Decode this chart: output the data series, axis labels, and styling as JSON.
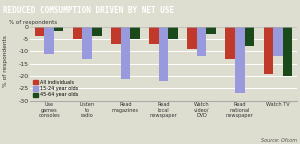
{
  "title": "REDUCED COMSUMPTION DRIVEN BY NET USE",
  "ylabel": "% of respondents",
  "source": "Source: Ofcom",
  "categories": [
    "Use\ngames\nconsoles",
    "Listen\nto\nradio",
    "Read\nmagazines",
    "Read\nlocal\nnewspaper",
    "Watch\nvideo/\nDVD",
    "Read\nnational\nnewspaper",
    "Watch TV"
  ],
  "series": {
    "All individuals": [
      -4,
      -5,
      -7,
      -7,
      -9,
      -13,
      -19
    ],
    "15-24 year olds": [
      -11,
      -13,
      -21,
      -22,
      -12,
      -27,
      -12
    ],
    "45-64 year olds": [
      -2,
      -4,
      -5,
      -5,
      -3,
      -8,
      -20
    ]
  },
  "colors": {
    "All individuals": "#c0392b",
    "15-24 year olds": "#9999dd",
    "45-64 year olds": "#1a4a1a"
  },
  "ylim": [
    -30,
    2
  ],
  "yticks": [
    0,
    -5,
    -10,
    -15,
    -20,
    -25,
    -30
  ],
  "title_bg": "#2e7092",
  "title_color": "#ffffff",
  "plot_bg": "#deded0",
  "grid_color": "#ffffff",
  "bar_width": 0.25
}
